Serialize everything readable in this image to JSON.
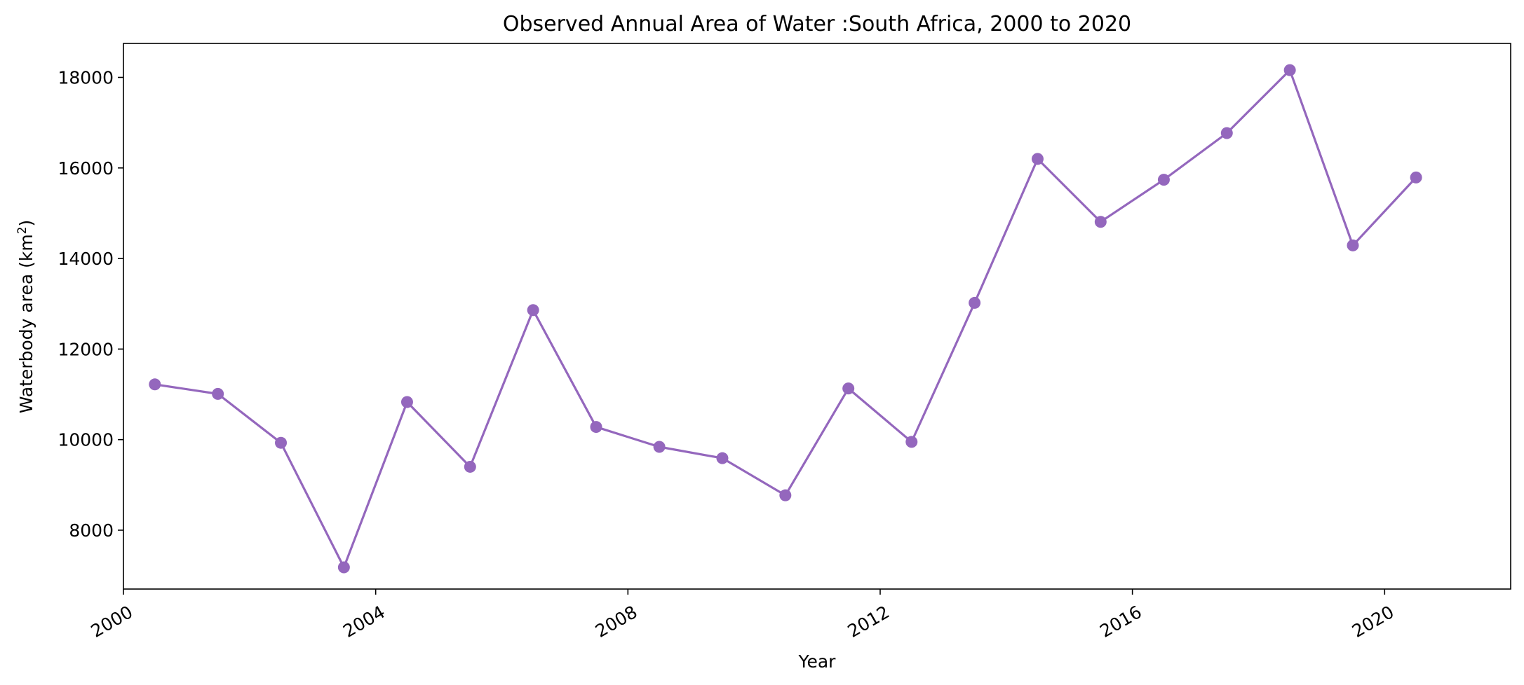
{
  "chart_data": {
    "type": "line",
    "title": "Observed Annual Area of Water :South Africa, 2000 to 2020",
    "xlabel": "Year",
    "ylabel_main": "Waterbody area (km",
    "ylabel_sup": "2",
    "ylabel_close": ")",
    "x_ticks": [
      "2000",
      "2004",
      "2008",
      "2012",
      "2016",
      "2020"
    ],
    "y_ticks": [
      "8000",
      "10000",
      "12000",
      "14000",
      "16000",
      "18000"
    ],
    "xlim": [
      "2000-01-01",
      "2021-12-31"
    ],
    "ylim": [
      6700,
      18750
    ],
    "grid": false,
    "color": "#9467bd",
    "series": [
      {
        "x": [
          "2000-07-01",
          "2001-07-01",
          "2002-07-01",
          "2003-07-01",
          "2004-07-01",
          "2005-07-01",
          "2006-07-01",
          "2007-07-01",
          "2008-07-01",
          "2009-07-01",
          "2010-07-01",
          "2011-07-01",
          "2012-07-01",
          "2013-07-01",
          "2014-07-01",
          "2015-07-01",
          "2016-07-01",
          "2017-07-01",
          "2018-07-01",
          "2019-07-01",
          "2020-07-01"
        ],
        "values": [
          11220,
          11010,
          9930,
          7180,
          10830,
          9400,
          12860,
          10280,
          9840,
          9590,
          8770,
          11130,
          9950,
          13020,
          16200,
          14810,
          15740,
          16770,
          18160,
          14290,
          15790
        ]
      }
    ]
  }
}
